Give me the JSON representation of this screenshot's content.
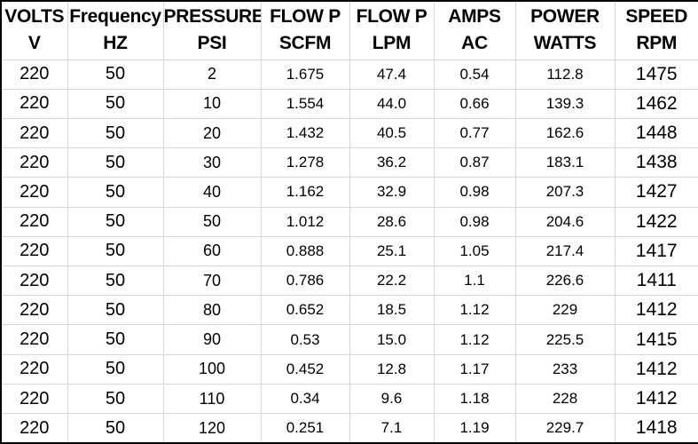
{
  "colors": {
    "background": "#ffffff",
    "text": "#000000",
    "gridline": "#d8d8d8",
    "outer_border": "#000000"
  },
  "chart_data": {
    "type": "table",
    "title": "",
    "columns": [
      {
        "line1": "VOLTS",
        "line2": "V"
      },
      {
        "line1": "Frequency",
        "line2": "HZ"
      },
      {
        "line1": "PRESSURE",
        "line2": "PSI"
      },
      {
        "line1": "FLOW P",
        "line2": "SCFM"
      },
      {
        "line1": "FLOW P",
        "line2": "LPM"
      },
      {
        "line1": "AMPS",
        "line2": "AC"
      },
      {
        "line1": "POWER",
        "line2": "WATTS"
      },
      {
        "line1": "SPEED",
        "line2": "RPM"
      }
    ],
    "rows": [
      [
        "220",
        "50",
        "2",
        "1.675",
        "47.4",
        "0.54",
        "112.8",
        "1475"
      ],
      [
        "220",
        "50",
        "10",
        "1.554",
        "44.0",
        "0.66",
        "139.3",
        "1462"
      ],
      [
        "220",
        "50",
        "20",
        "1.432",
        "40.5",
        "0.77",
        "162.6",
        "1448"
      ],
      [
        "220",
        "50",
        "30",
        "1.278",
        "36.2",
        "0.87",
        "183.1",
        "1438"
      ],
      [
        "220",
        "50",
        "40",
        "1.162",
        "32.9",
        "0.98",
        "207.3",
        "1427"
      ],
      [
        "220",
        "50",
        "50",
        "1.012",
        "28.6",
        "0.98",
        "204.6",
        "1422"
      ],
      [
        "220",
        "50",
        "60",
        "0.888",
        "25.1",
        "1.05",
        "217.4",
        "1417"
      ],
      [
        "220",
        "50",
        "70",
        "0.786",
        "22.2",
        "1.1",
        "226.6",
        "1411"
      ],
      [
        "220",
        "50",
        "80",
        "0.652",
        "18.5",
        "1.12",
        "229",
        "1412"
      ],
      [
        "220",
        "50",
        "90",
        "0.53",
        "15.0",
        "1.12",
        "225.5",
        "1415"
      ],
      [
        "220",
        "50",
        "100",
        "0.452",
        "12.8",
        "1.17",
        "233",
        "1412"
      ],
      [
        "220",
        "50",
        "110",
        "0.34",
        "9.6",
        "1.18",
        "228",
        "1412"
      ],
      [
        "220",
        "50",
        "120",
        "0.251",
        "7.1",
        "1.19",
        "229.7",
        "1418"
      ]
    ]
  }
}
